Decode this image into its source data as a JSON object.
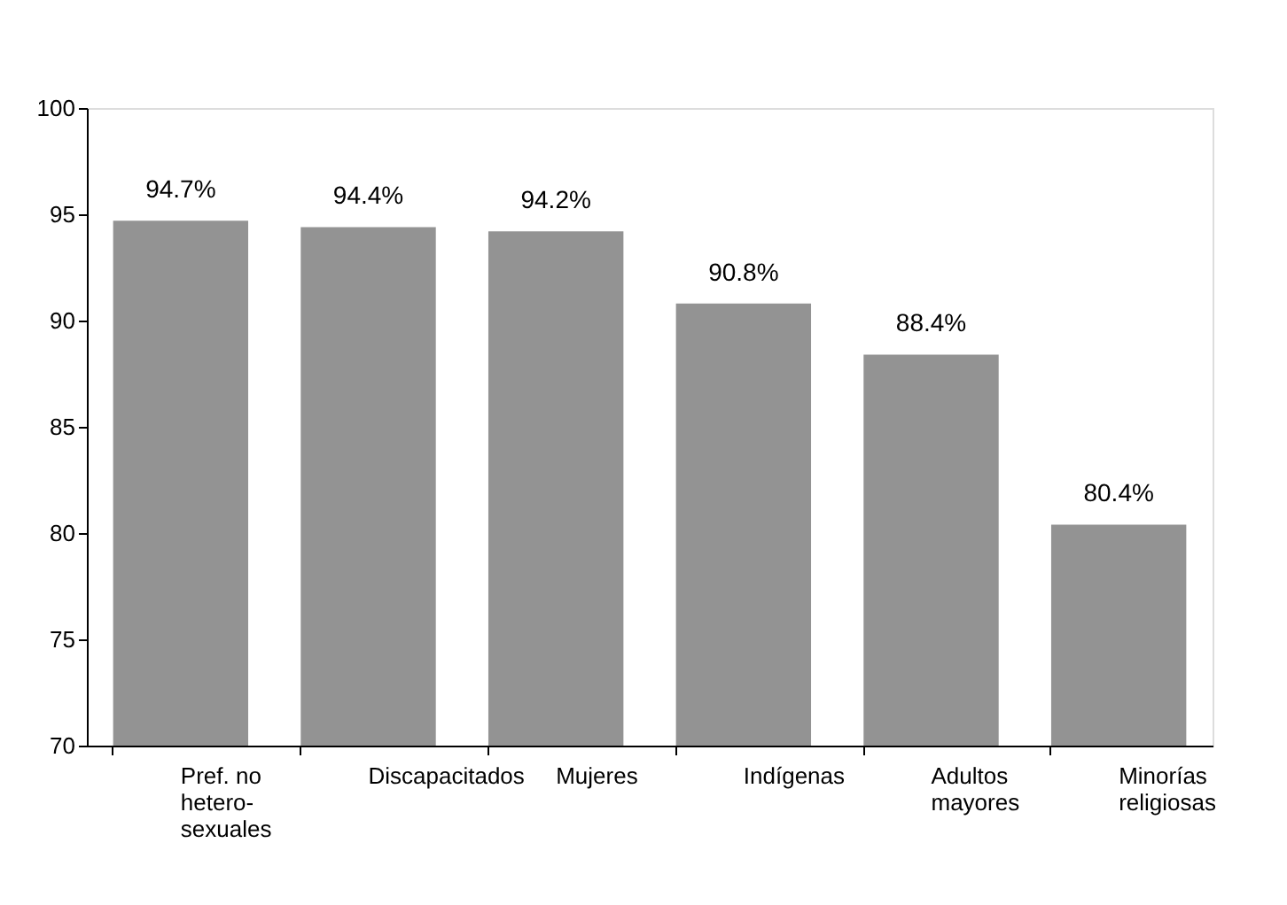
{
  "chart_data": {
    "type": "bar",
    "categories": [
      "Pref. no\nhetero-\nsexuales",
      "Discapacitados",
      "Mujeres",
      "Indígenas",
      "Adultos\nmayores",
      "Minorías\nreligiosas"
    ],
    "values": [
      94.7,
      94.4,
      94.2,
      90.8,
      88.4,
      80.4
    ],
    "value_labels": [
      "94.7%",
      "94.4%",
      "94.2%",
      "90.8%",
      "88.4%",
      "80.4%"
    ],
    "color": "#939393",
    "ylim": [
      70,
      100
    ],
    "yticks": [
      70,
      75,
      80,
      85,
      90,
      95,
      100
    ],
    "grid": false,
    "legend": false
  }
}
